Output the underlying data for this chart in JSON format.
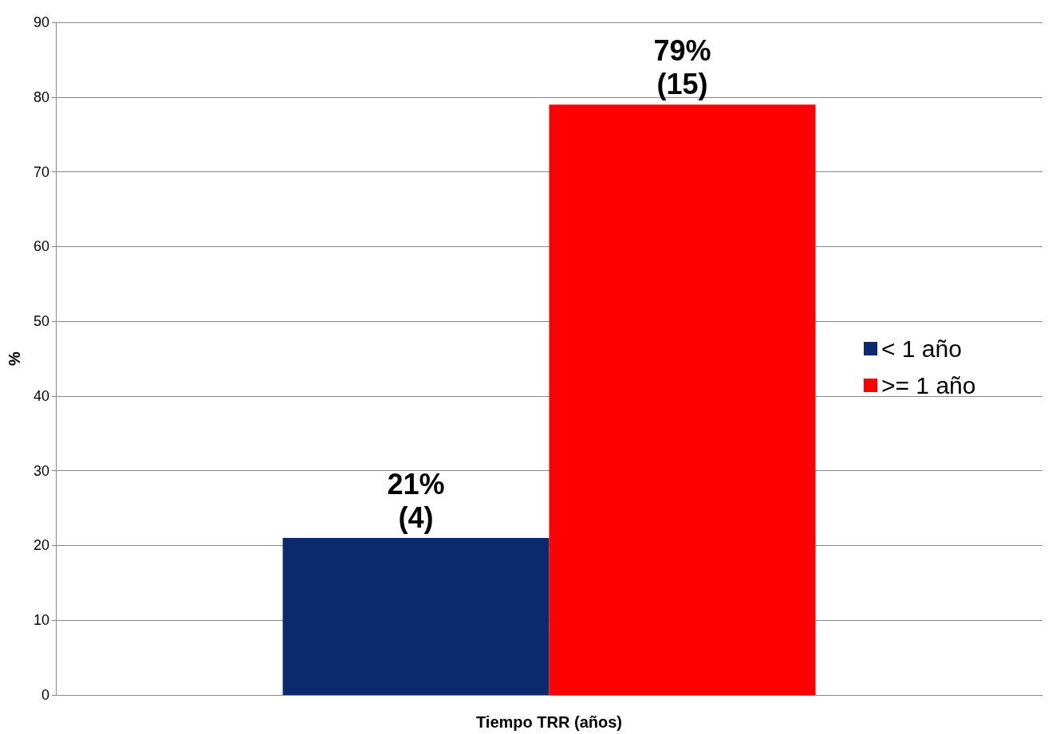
{
  "chart_data": {
    "type": "bar",
    "xlabel": "Tiempo TRR (años)",
    "ylabel": "%",
    "categories": [
      null
    ],
    "series": [
      {
        "name": "< 1 año",
        "color": "#0b2a6e",
        "values": [
          21
        ],
        "value_labels": [
          "21%\n(4)"
        ]
      },
      {
        "name": ">= 1 año",
        "color": "#ff0000",
        "values": [
          79
        ],
        "value_labels": [
          "79%\n(15)"
        ]
      }
    ],
    "ylim": [
      0,
      90
    ],
    "yticks": [
      0,
      10,
      20,
      30,
      40,
      50,
      60,
      70,
      80,
      90
    ],
    "grid": "y",
    "legend": "right"
  }
}
